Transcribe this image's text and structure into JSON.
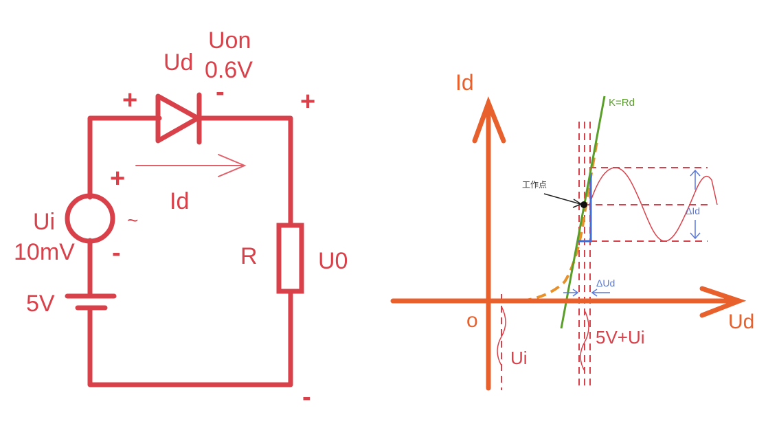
{
  "colors": {
    "circuit": "#d9414a",
    "axes": "#e8602c",
    "tangent": "#5a9e2a",
    "delta": "#5a78d8",
    "diode_curve": "#e8902a",
    "sine": "#d9414a"
  },
  "circuit": {
    "diode_voltage": "Ud",
    "turn_on_label": "Uon",
    "turn_on_value": "0.6V",
    "diode_plus": "+",
    "diode_minus": "-",
    "out_plus": "+",
    "out_minus": "-",
    "source_plus": "+",
    "source_minus": "-",
    "source_name": "Ui",
    "source_amplitude": "10mV",
    "source_symbol": "~",
    "current_label": "Id",
    "resistor_label": "R",
    "output_label": "U0",
    "dc_source_label": "5V"
  },
  "graph": {
    "y_axis_label": "Id",
    "x_axis_label": "Ud",
    "origin_label": "o",
    "tangent_label": "K=Rd",
    "operating_point_label": "工作点",
    "delta_id_label": "ΔId",
    "delta_ud_label": "ΔUd",
    "input_label": "Ui",
    "bias_label": "5V+Ui"
  }
}
